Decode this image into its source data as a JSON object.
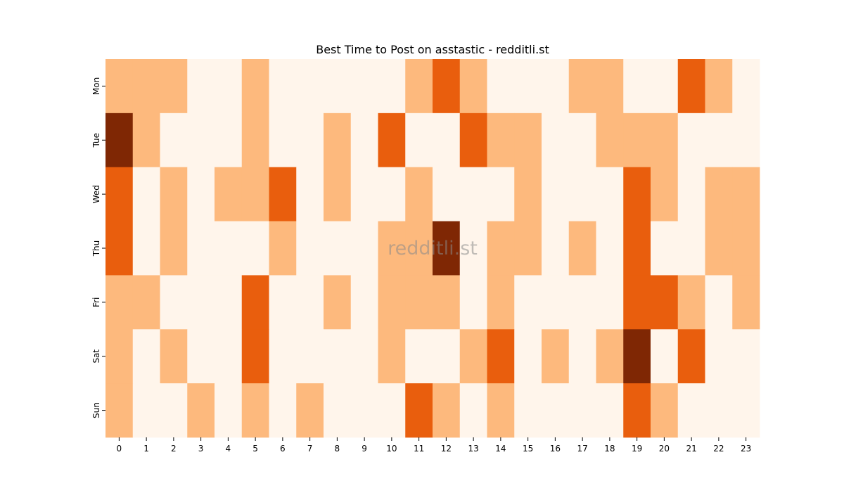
{
  "chart_data": {
    "type": "heatmap",
    "title": "Best Time to Post on asstastic - redditli.st",
    "xlabel": "",
    "ylabel": "",
    "x_categories": [
      "0",
      "1",
      "2",
      "3",
      "4",
      "5",
      "6",
      "7",
      "8",
      "9",
      "10",
      "11",
      "12",
      "13",
      "14",
      "15",
      "16",
      "17",
      "18",
      "19",
      "20",
      "21",
      "22",
      "23"
    ],
    "y_categories": [
      "Mon",
      "Tue",
      "Wed",
      "Thu",
      "Fri",
      "Sat",
      "Sun"
    ],
    "values": [
      [
        1,
        1,
        1,
        0,
        0,
        1,
        0,
        0,
        0,
        0,
        0,
        1,
        2,
        1,
        0,
        0,
        0,
        1,
        1,
        0,
        0,
        2,
        1,
        0
      ],
      [
        3,
        1,
        0,
        0,
        0,
        1,
        0,
        0,
        1,
        0,
        2,
        0,
        0,
        2,
        1,
        1,
        0,
        0,
        1,
        1,
        1,
        0,
        0,
        0
      ],
      [
        2,
        0,
        1,
        0,
        1,
        1,
        2,
        0,
        1,
        0,
        0,
        1,
        0,
        0,
        0,
        1,
        0,
        0,
        0,
        2,
        1,
        0,
        1,
        1
      ],
      [
        2,
        0,
        1,
        0,
        0,
        0,
        1,
        0,
        0,
        0,
        1,
        1,
        3,
        0,
        1,
        1,
        0,
        1,
        0,
        2,
        0,
        0,
        1,
        1
      ],
      [
        1,
        1,
        0,
        0,
        0,
        2,
        0,
        0,
        1,
        0,
        1,
        1,
        1,
        0,
        1,
        0,
        0,
        0,
        0,
        2,
        2,
        1,
        0,
        1
      ],
      [
        1,
        0,
        1,
        0,
        0,
        2,
        0,
        0,
        0,
        0,
        1,
        0,
        0,
        1,
        2,
        0,
        1,
        0,
        1,
        3,
        0,
        2,
        0,
        0
      ],
      [
        1,
        0,
        0,
        1,
        0,
        1,
        0,
        1,
        0,
        0,
        0,
        2,
        1,
        0,
        1,
        0,
        0,
        0,
        0,
        2,
        1,
        0,
        0,
        0
      ]
    ],
    "value_range": [
      0,
      3
    ],
    "colormap": [
      "#fff5eb",
      "#fdb97d",
      "#e95e0d",
      "#7f2704"
    ],
    "colorbar": false,
    "grid": false,
    "legend": "none",
    "watermark": "redditli.st"
  }
}
